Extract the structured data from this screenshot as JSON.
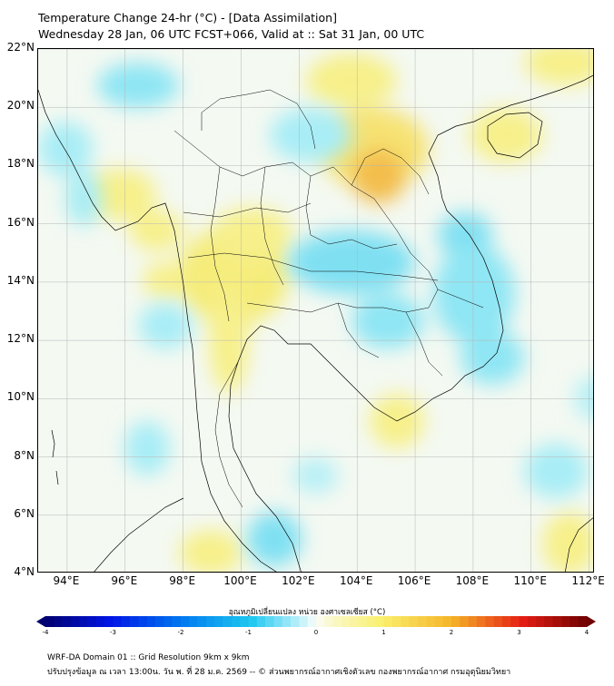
{
  "title": {
    "line1": "Temperature Change 24-hr (°C) - [Data Assimilation]",
    "line2": "Wednesday 28 Jan, 06 UTC FCST+066, Valid at :: Sat 31 Jan, 00 UTC"
  },
  "map": {
    "lat_labels": [
      "22°N",
      "20°N",
      "18°N",
      "16°N",
      "14°N",
      "12°N",
      "10°N",
      "8°N",
      "6°N",
      "4°N"
    ],
    "lon_labels": [
      "94°E",
      "96°E",
      "98°E",
      "100°E",
      "102°E",
      "104°E",
      "106°E",
      "108°E",
      "110°E",
      "112°E"
    ],
    "lat_range": [
      4,
      22
    ],
    "lon_range": [
      93,
      112.2
    ],
    "gridlines": true,
    "warm_color": "#f7f08a",
    "cool_color": "#8fe6f4",
    "peak_warm_color": "#f3bd4c"
  },
  "colorbar": {
    "title": "อุณหภูมิเปลี่ยนแปลง หน่วย องศาเซลเซียส (°C)",
    "ticks": [
      "-4",
      "-3",
      "-2",
      "-1",
      "0",
      "1",
      "2",
      "3",
      "4"
    ],
    "min": -4,
    "max": 4
  },
  "footer": {
    "line1": "WRF-DA Domain 01 :: Grid Resolution 9km x 9km",
    "line2": "ปรับปรุงข้อมูล ณ เวลา 13:00น. วัน พ. ที่ 28 ม.ค. 2569 -- © ส่วนพยากรณ์อากาศเชิงตัวเลข กองพยากรณ์อากาศ กรมอุตุนิยมวิทยา"
  }
}
